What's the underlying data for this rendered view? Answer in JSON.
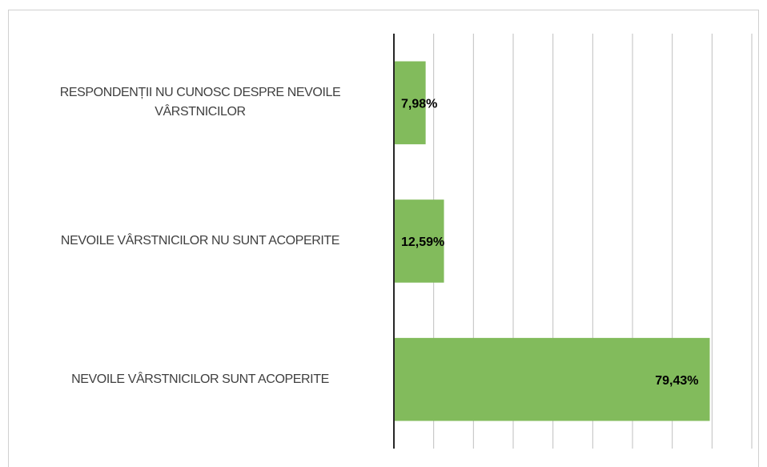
{
  "chart_data": {
    "type": "bar",
    "orientation": "horizontal",
    "categories": [
      "RESPONDENȚII NU CUNOSC DESPRE NEVOILE VÂRSTNICILOR",
      "NEVOILE VÂRSTNICILOR NU SUNT ACOPERITE",
      "NEVOILE VÂRSTNICILOR SUNT ACOPERITE"
    ],
    "values": [
      7.98,
      12.59,
      79.43
    ],
    "value_labels": [
      "7,98%",
      "12,59%",
      "79,43%"
    ],
    "color": "#82bb5c",
    "xlim": [
      0,
      90
    ],
    "xticks": [
      0,
      10,
      20,
      30,
      40,
      50,
      60,
      70,
      80,
      90
    ],
    "grid": true
  }
}
